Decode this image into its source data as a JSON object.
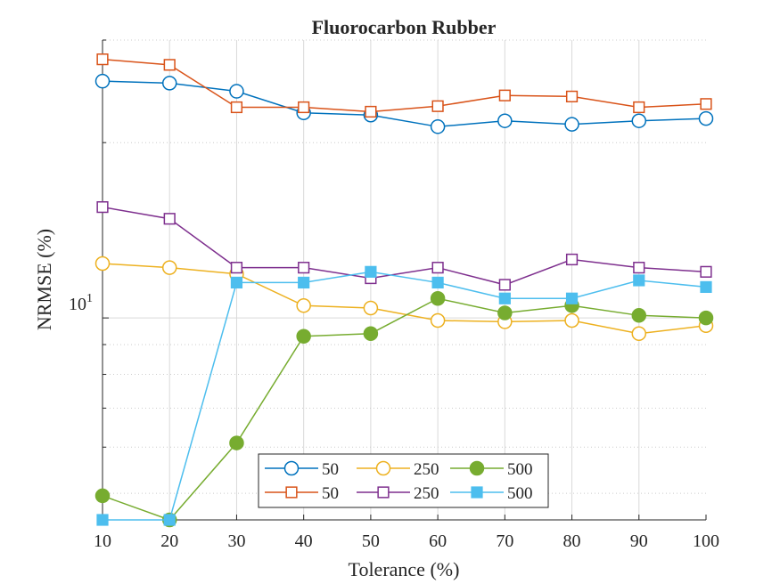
{
  "chart_data": {
    "type": "line",
    "title": "Fluorocarbon Rubber",
    "xlabel": "Tolerance (%)",
    "ylabel": "NRMSE (%)",
    "x": [
      10,
      20,
      30,
      40,
      50,
      60,
      70,
      80,
      90,
      100
    ],
    "xlim": [
      10,
      100
    ],
    "ylim": [
      4.5,
      30
    ],
    "yscale": "log",
    "ytick_base": "10",
    "ytick_exp": "1",
    "grid": true,
    "legend_position": "bottom-center",
    "series": [
      {
        "name": "50",
        "color": "#0072bd",
        "marker": "circle-open",
        "values": [
          25.5,
          25.3,
          24.5,
          22.5,
          22.3,
          21.3,
          21.8,
          21.5,
          21.8,
          22.0
        ]
      },
      {
        "name": "50",
        "color": "#d95319",
        "marker": "square-open",
        "values": [
          27.8,
          27.2,
          23.0,
          23.0,
          22.6,
          23.1,
          24.1,
          24.0,
          23.0,
          23.3
        ]
      },
      {
        "name": "250",
        "color": "#edb120",
        "marker": "circle-open",
        "values": [
          12.4,
          12.2,
          11.9,
          10.5,
          10.4,
          9.9,
          9.85,
          9.9,
          9.4,
          9.7
        ]
      },
      {
        "name": "250",
        "color": "#7e2f8e",
        "marker": "square-open",
        "values": [
          15.5,
          14.8,
          12.2,
          12.2,
          11.7,
          12.2,
          11.4,
          12.6,
          12.2,
          12.0
        ]
      },
      {
        "name": "500",
        "color": "#77ac30",
        "marker": "circle-filled",
        "values": [
          4.95,
          4.5,
          6.1,
          9.3,
          9.4,
          10.8,
          10.2,
          10.5,
          10.1,
          10.0
        ]
      },
      {
        "name": "500",
        "color": "#4dbeee",
        "marker": "square-filled",
        "values": [
          4.5,
          4.5,
          11.5,
          11.5,
          12.0,
          11.5,
          10.8,
          10.8,
          11.6,
          11.3
        ]
      }
    ]
  }
}
